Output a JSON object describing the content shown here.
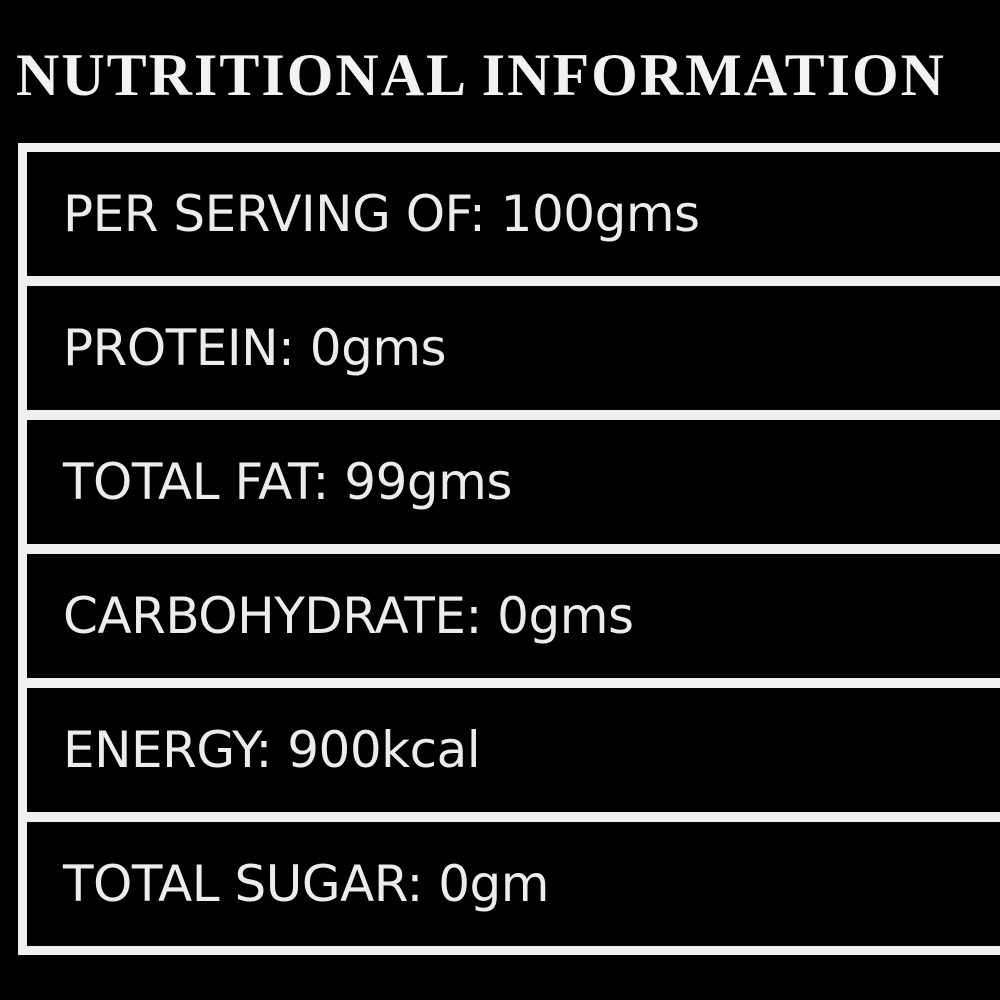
{
  "title": "NUTRITIONAL INFORMATION",
  "rows": [
    "PER SERVING OF: 100gms",
    "PROTEIN: 0gms",
    "TOTAL FAT: 99gms",
    "CARBOHYDRATE: 0gms",
    "ENERGY: 900kcal",
    "TOTAL SUGAR: 0gm"
  ]
}
